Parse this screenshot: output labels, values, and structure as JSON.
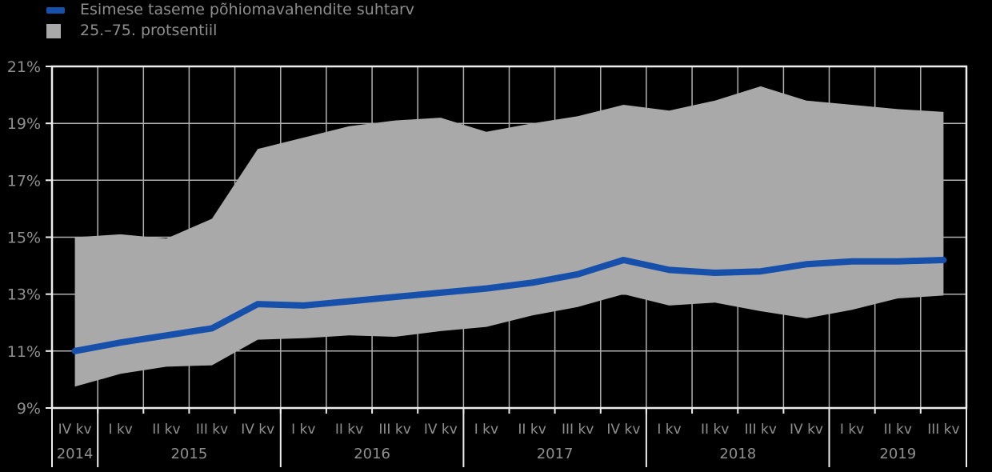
{
  "legend": {
    "items": [
      {
        "label": "Esimese taseme põhiomavahendite suhtarv",
        "swatch": "line"
      },
      {
        "label": "25.–75. protsentiil",
        "swatch": "square"
      }
    ]
  },
  "chart_data": {
    "type": "line",
    "x": [
      "2014Q4",
      "2015Q1",
      "2015Q2",
      "2015Q3",
      "2015Q4",
      "2016Q1",
      "2016Q2",
      "2016Q3",
      "2016Q4",
      "2017Q1",
      "2017Q2",
      "2017Q3",
      "2017Q4",
      "2018Q1",
      "2018Q2",
      "2018Q3",
      "2018Q4",
      "2019Q1",
      "2019Q2",
      "2019Q3"
    ],
    "quarter_labels": [
      "IV kv",
      "I kv",
      "II kv",
      "III kv",
      "IV kv",
      "I kv",
      "II kv",
      "III kv",
      "IV kv",
      "I kv",
      "II kv",
      "III kv",
      "IV kv",
      "I kv",
      "II kv",
      "III kv",
      "IV kv",
      "I kv",
      "II kv",
      "III kv"
    ],
    "year_groups": [
      {
        "label": "2014",
        "quarters": 1
      },
      {
        "label": "2015",
        "quarters": 4
      },
      {
        "label": "2016",
        "quarters": 4
      },
      {
        "label": "2017",
        "quarters": 4
      },
      {
        "label": "2018",
        "quarters": 4
      },
      {
        "label": "2019",
        "quarters": 3
      }
    ],
    "series": [
      {
        "name": "Esimese taseme põhiomavahendite suhtarv",
        "type": "line",
        "color": "#1750aa",
        "values": [
          11.0,
          11.3,
          11.55,
          11.8,
          12.65,
          12.6,
          12.75,
          12.9,
          13.05,
          13.2,
          13.4,
          13.7,
          14.2,
          13.85,
          13.75,
          13.8,
          14.05,
          14.15,
          14.15,
          14.2
        ]
      },
      {
        "name": "25.–75. protsentiil",
        "type": "band",
        "color": "#a9a9a9",
        "upper": [
          15.0,
          15.1,
          14.95,
          15.65,
          18.1,
          18.5,
          18.9,
          19.1,
          19.2,
          18.7,
          19.0,
          19.25,
          19.65,
          19.45,
          19.8,
          20.3,
          19.8,
          19.65,
          19.5,
          19.4
        ],
        "lower": [
          9.75,
          10.2,
          10.45,
          10.5,
          11.4,
          11.45,
          11.55,
          11.5,
          11.7,
          11.85,
          12.25,
          12.55,
          13.0,
          12.6,
          12.7,
          12.4,
          12.15,
          12.45,
          12.85,
          12.95
        ]
      }
    ],
    "title": "",
    "xlabel": "",
    "ylabel": "",
    "y_ticks": [
      9,
      11,
      13,
      15,
      17,
      19,
      21
    ],
    "y_tick_suffix": "%",
    "ylim": [
      9,
      21
    ],
    "grid": true,
    "legend_position": "top-left",
    "colors": {
      "background": "#000000",
      "grid": "#b0b0b0",
      "border": "#ededed",
      "text": "#8f8f8f"
    }
  }
}
